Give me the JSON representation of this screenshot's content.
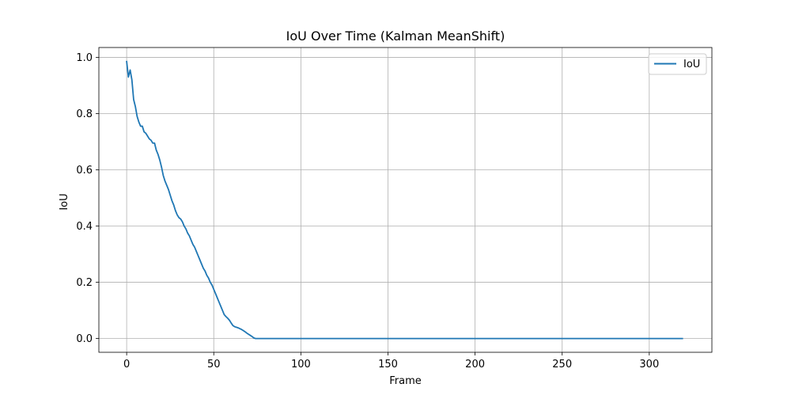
{
  "chart_data": {
    "type": "line",
    "title": "IoU Over Time (Kalman MeanShift)",
    "xlabel": "Frame",
    "ylabel": "IoU",
    "xlim": [
      -15.95,
      335.95
    ],
    "ylim": [
      -0.049,
      1.035
    ],
    "xticks": [
      0,
      50,
      100,
      150,
      200,
      250,
      300
    ],
    "xtick_labels": [
      "0",
      "50",
      "100",
      "150",
      "200",
      "250",
      "300"
    ],
    "yticks": [
      0.0,
      0.2,
      0.4,
      0.6,
      0.8,
      1.0
    ],
    "ytick_labels": [
      "0.0",
      "0.2",
      "0.4",
      "0.6",
      "0.8",
      "1.0"
    ],
    "grid": true,
    "legend_position": "upper right",
    "series": [
      {
        "name": "IoU",
        "color": "#1f77b4",
        "x": [
          0,
          1,
          2,
          3,
          4,
          5,
          6,
          7,
          8,
          9,
          10,
          11,
          12,
          13,
          14,
          15,
          16,
          17,
          18,
          19,
          20,
          21,
          22,
          23,
          24,
          25,
          26,
          27,
          28,
          29,
          30,
          31,
          32,
          33,
          34,
          35,
          36,
          37,
          38,
          39,
          40,
          41,
          42,
          43,
          44,
          45,
          46,
          47,
          48,
          49,
          50,
          51,
          52,
          53,
          54,
          55,
          56,
          57,
          58,
          59,
          60,
          61,
          62,
          63,
          64,
          65,
          66,
          67,
          68,
          69,
          70,
          71,
          72,
          73,
          74,
          75,
          76,
          77,
          78,
          79,
          80,
          319
        ],
        "y": [
          0.985,
          0.93,
          0.955,
          0.92,
          0.85,
          0.825,
          0.79,
          0.77,
          0.755,
          0.755,
          0.735,
          0.73,
          0.72,
          0.71,
          0.705,
          0.695,
          0.695,
          0.67,
          0.655,
          0.635,
          0.61,
          0.58,
          0.56,
          0.545,
          0.53,
          0.51,
          0.49,
          0.475,
          0.455,
          0.44,
          0.43,
          0.425,
          0.415,
          0.4,
          0.39,
          0.375,
          0.365,
          0.35,
          0.335,
          0.325,
          0.31,
          0.295,
          0.28,
          0.265,
          0.25,
          0.24,
          0.225,
          0.215,
          0.2,
          0.19,
          0.175,
          0.16,
          0.145,
          0.13,
          0.115,
          0.1,
          0.085,
          0.078,
          0.072,
          0.065,
          0.055,
          0.046,
          0.042,
          0.04,
          0.038,
          0.035,
          0.032,
          0.028,
          0.024,
          0.019,
          0.015,
          0.011,
          0.007,
          0.002,
          0.0,
          0.0,
          0.0,
          0.0,
          0.0,
          0.0,
          0.0,
          0.0
        ]
      }
    ]
  }
}
